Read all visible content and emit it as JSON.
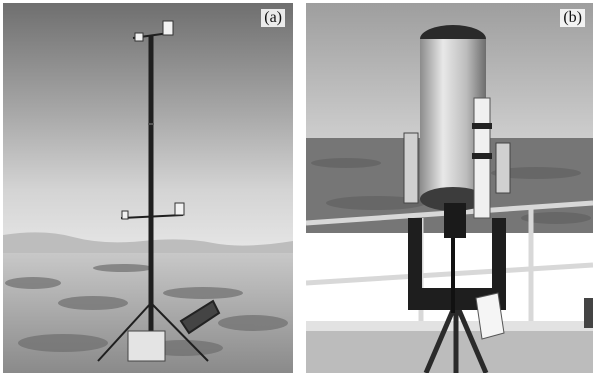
{
  "panels": [
    {
      "label": "(a)",
      "subject": "weather-station-mast"
    },
    {
      "label": "(b)",
      "subject": "telescope-on-mount"
    }
  ]
}
